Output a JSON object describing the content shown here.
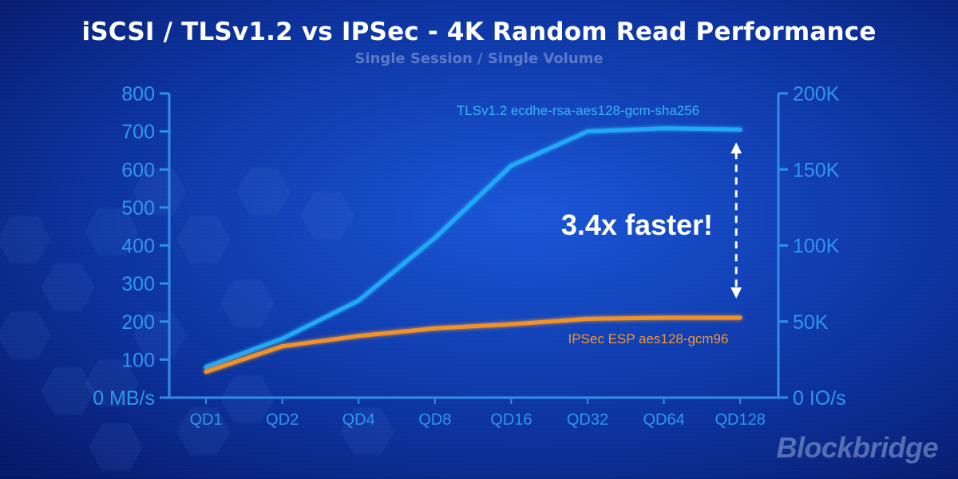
{
  "title": "iSCSI  / TLSv1.2 vs IPSec - 4K Random Read Performance",
  "subtitle": "Single Session / Single Volume",
  "brand": "Blockbridge",
  "colors": {
    "background": "#0a2a8c",
    "axis": "#2f8fe6",
    "tls_series": "#20a8f4",
    "ipsec_series": "#f0922a",
    "callout": "#ffffff"
  },
  "chart_data": {
    "type": "line",
    "categories": [
      "QD1",
      "QD2",
      "QD4",
      "QD8",
      "QD16",
      "QD32",
      "QD64",
      "QD128"
    ],
    "ylim": [
      0,
      800
    ],
    "y_ticks": [
      0,
      100,
      200,
      300,
      400,
      500,
      600,
      700,
      800
    ],
    "y_tick_labels": [
      "0 MB/s",
      "100",
      "200",
      "300",
      "400",
      "500",
      "600",
      "700",
      "800"
    ],
    "y2lim": [
      0,
      200000
    ],
    "y2_ticks": [
      0,
      50000,
      100000,
      150000,
      200000
    ],
    "y2_tick_labels": [
      "0 IO/s",
      "50K",
      "100K",
      "150K",
      "200K"
    ],
    "grid": false,
    "series": [
      {
        "name": "TLSv1.2 ecdhe-rsa-aes128-gcm-sha256",
        "values": [
          80,
          155,
          255,
          420,
          610,
          700,
          708,
          705
        ],
        "color": "#20a8f4"
      },
      {
        "name": "IPSec ESP aes128-gcm96",
        "values": [
          68,
          135,
          162,
          182,
          193,
          207,
          210,
          210
        ],
        "color": "#f0922a"
      }
    ],
    "annotations": [
      {
        "text": "3.4x faster!",
        "category": "QD128",
        "from_value": 210,
        "to_value": 705
      }
    ]
  }
}
